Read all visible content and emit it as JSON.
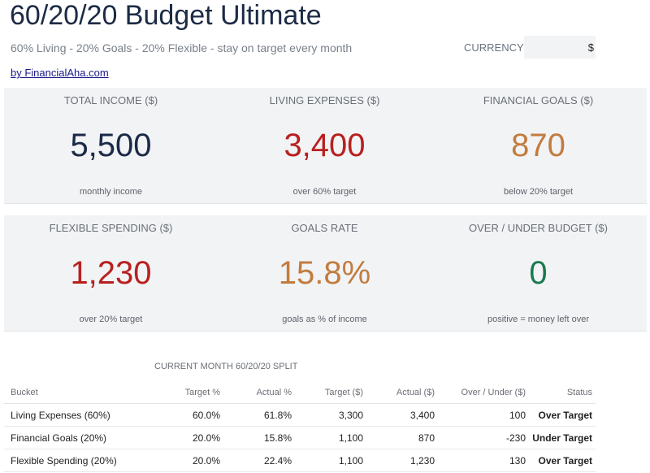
{
  "header": {
    "title": "60/20/20 Budget Ultimate",
    "subtitle": "60% Living - 20% Goals - 20% Flexible - stay on target every month",
    "currency_label": "CURRENCY",
    "currency_value": "$",
    "link_text": "by FinancialAha.com"
  },
  "kpis": [
    {
      "label": "TOTAL INCOME ($)",
      "value": "5,500",
      "sub": "monthly income",
      "color": "#1b2a47"
    },
    {
      "label": "LIVING EXPENSES ($)",
      "value": "3,400",
      "sub": "over 60% target",
      "color": "#b8201f"
    },
    {
      "label": "FINANCIAL GOALS ($)",
      "value": "870",
      "sub": "below 20% target",
      "color": "#c27c3e"
    },
    {
      "label": "FLEXIBLE SPENDING ($)",
      "value": "1,230",
      "sub": "over 20% target",
      "color": "#b8201f"
    },
    {
      "label": "GOALS RATE",
      "value": "15.8%",
      "sub": "goals as % of income",
      "color": "#c27c3e"
    },
    {
      "label": "OVER / UNDER BUDGET ($)",
      "value": "0",
      "sub": "positive = money left over",
      "color": "#1a7a50"
    }
  ],
  "split": {
    "title": "CURRENT MONTH 60/20/20 SPLIT",
    "headers": [
      "Bucket",
      "Target %",
      "Actual %",
      "Target ($)",
      "Actual ($)",
      "Over / Under ($)",
      "Status"
    ],
    "rows": [
      [
        "Living Expenses (60%)",
        "60.0%",
        "61.8%",
        "3,300",
        "3,400",
        "100",
        "Over Target"
      ],
      [
        "Financial Goals (20%)",
        "20.0%",
        "15.8%",
        "1,100",
        "870",
        "-230",
        "Under Target"
      ],
      [
        "Flexible Spending (20%)",
        "20.0%",
        "22.4%",
        "1,100",
        "1,230",
        "130",
        "Over Target"
      ]
    ]
  }
}
